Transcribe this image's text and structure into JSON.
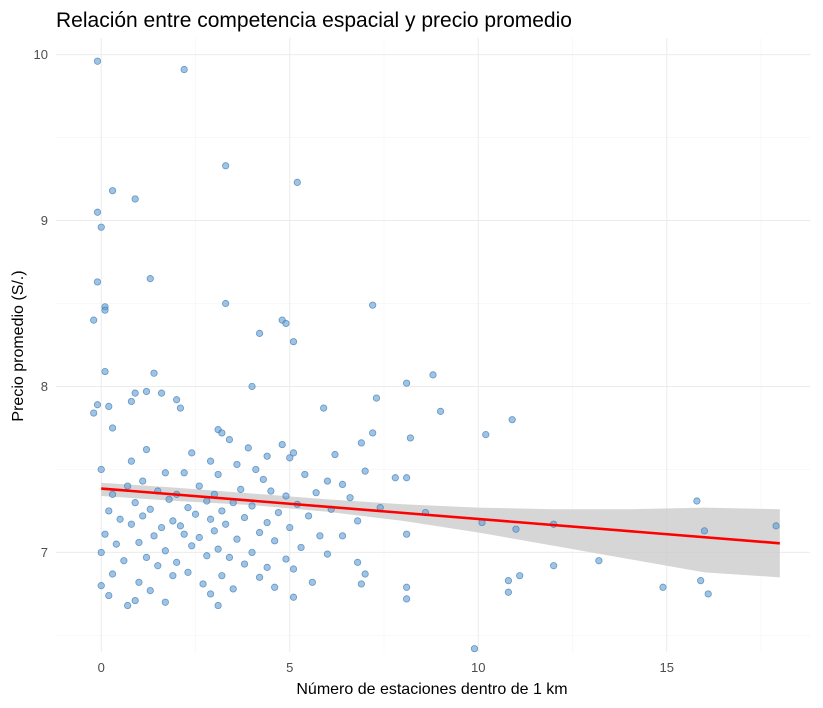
{
  "chart_data": {
    "type": "scatter",
    "title": "Relación entre competencia espacial y precio promedio",
    "xlabel": "Número de estaciones dentro de 1 km",
    "ylabel": "Precio promedio (S/.)",
    "xlim": [
      -1.2,
      18.8
    ],
    "ylim": [
      6.4,
      10.1
    ],
    "x_ticks": [
      {
        "value": 0,
        "label": "0"
      },
      {
        "value": 5,
        "label": "5"
      },
      {
        "value": 10,
        "label": "10"
      },
      {
        "value": 15,
        "label": "15"
      }
    ],
    "y_ticks": [
      {
        "value": 7,
        "label": "7"
      },
      {
        "value": 8,
        "label": "8"
      },
      {
        "value": 9,
        "label": "9"
      },
      {
        "value": 10,
        "label": "10"
      }
    ],
    "grid": true,
    "colors": {
      "point_fill": "#5b9bd5",
      "point_stroke": "#3f78ad",
      "trend": "#ff0000",
      "ribbon": "#cccccc"
    },
    "trend_line": {
      "x": [
        0,
        18
      ],
      "y": [
        7.385,
        7.055
      ]
    },
    "confidence_band": {
      "x": [
        0,
        2,
        4,
        6,
        8,
        10,
        12,
        14,
        16,
        18
      ],
      "lower": [
        7.34,
        7.31,
        7.285,
        7.245,
        7.19,
        7.12,
        7.04,
        6.96,
        6.88,
        6.85
      ],
      "upper": [
        7.42,
        7.39,
        7.355,
        7.32,
        7.29,
        7.27,
        7.26,
        7.26,
        7.27,
        7.26
      ]
    },
    "points": [
      [
        -0.1,
        9.96
      ],
      [
        2.2,
        9.91
      ],
      [
        3.3,
        9.33
      ],
      [
        5.2,
        9.23
      ],
      [
        0.3,
        9.18
      ],
      [
        0.9,
        9.13
      ],
      [
        -0.1,
        9.05
      ],
      [
        0,
        8.96
      ],
      [
        1.3,
        8.65
      ],
      [
        -0.1,
        8.63
      ],
      [
        3.3,
        8.5
      ],
      [
        7.2,
        8.49
      ],
      [
        0.1,
        8.48
      ],
      [
        0.1,
        8.46
      ],
      [
        4.8,
        8.4
      ],
      [
        4.9,
        8.38
      ],
      [
        -0.2,
        8.4
      ],
      [
        4.2,
        8.32
      ],
      [
        5.1,
        8.27
      ],
      [
        0.1,
        8.09
      ],
      [
        1.4,
        8.08
      ],
      [
        8.8,
        8.07
      ],
      [
        8.1,
        8.02
      ],
      [
        4.0,
        8.0
      ],
      [
        0.9,
        7.96
      ],
      [
        1.6,
        7.96
      ],
      [
        1.2,
        7.97
      ],
      [
        7.3,
        7.93
      ],
      [
        2.0,
        7.92
      ],
      [
        0.8,
        7.91
      ],
      [
        -0.1,
        7.89
      ],
      [
        0.2,
        7.88
      ],
      [
        2.1,
        7.87
      ],
      [
        5.9,
        7.87
      ],
      [
        9.0,
        7.85
      ],
      [
        -0.2,
        7.84
      ],
      [
        10.9,
        7.8
      ],
      [
        0.3,
        7.75
      ],
      [
        3.1,
        7.74
      ],
      [
        3.2,
        7.72
      ],
      [
        7.2,
        7.72
      ],
      [
        10.2,
        7.71
      ],
      [
        8.2,
        7.69
      ],
      [
        3.4,
        7.68
      ],
      [
        6.9,
        7.66
      ],
      [
        4.8,
        7.65
      ],
      [
        3.9,
        7.63
      ],
      [
        1.2,
        7.62
      ],
      [
        2.4,
        7.6
      ],
      [
        5.1,
        7.6
      ],
      [
        6.2,
        7.59
      ],
      [
        4.4,
        7.58
      ],
      [
        5.0,
        7.57
      ],
      [
        0.8,
        7.55
      ],
      [
        2.9,
        7.55
      ],
      [
        3.6,
        7.53
      ],
      [
        4.1,
        7.5
      ],
      [
        7.0,
        7.49
      ],
      [
        0.0,
        7.5
      ],
      [
        2.2,
        7.48
      ],
      [
        1.7,
        7.48
      ],
      [
        5.4,
        7.47
      ],
      [
        3.1,
        7.47
      ],
      [
        8.1,
        7.45
      ],
      [
        7.8,
        7.45
      ],
      [
        4.3,
        7.44
      ],
      [
        1.1,
        7.43
      ],
      [
        6.0,
        7.43
      ],
      [
        6.4,
        7.41
      ],
      [
        2.6,
        7.4
      ],
      [
        0.7,
        7.4
      ],
      [
        3.7,
        7.38
      ],
      [
        4.5,
        7.37
      ],
      [
        1.5,
        7.37
      ],
      [
        5.7,
        7.36
      ],
      [
        2.0,
        7.35
      ],
      [
        3.0,
        7.35
      ],
      [
        0.3,
        7.35
      ],
      [
        4.9,
        7.34
      ],
      [
        6.6,
        7.33
      ],
      [
        1.8,
        7.32
      ],
      [
        2.8,
        7.31
      ],
      [
        3.5,
        7.3
      ],
      [
        0.9,
        7.3
      ],
      [
        5.2,
        7.29
      ],
      [
        4.0,
        7.28
      ],
      [
        7.4,
        7.27
      ],
      [
        2.3,
        7.27
      ],
      [
        1.3,
        7.26
      ],
      [
        6.1,
        7.26
      ],
      [
        3.2,
        7.25
      ],
      [
        0.2,
        7.25
      ],
      [
        4.7,
        7.24
      ],
      [
        8.6,
        7.24
      ],
      [
        2.5,
        7.23
      ],
      [
        1.1,
        7.22
      ],
      [
        5.5,
        7.22
      ],
      [
        3.8,
        7.21
      ],
      [
        0.5,
        7.2
      ],
      [
        2.9,
        7.2
      ],
      [
        6.8,
        7.19
      ],
      [
        1.9,
        7.19
      ],
      [
        4.4,
        7.18
      ],
      [
        3.3,
        7.17
      ],
      [
        0.8,
        7.17
      ],
      [
        2.1,
        7.16
      ],
      [
        5.0,
        7.15
      ],
      [
        1.6,
        7.15
      ],
      [
        10.1,
        7.18
      ],
      [
        12.0,
        7.17
      ],
      [
        16.0,
        7.13
      ],
      [
        3.0,
        7.13
      ],
      [
        4.2,
        7.12
      ],
      [
        2.2,
        7.11
      ],
      [
        0.1,
        7.11
      ],
      [
        5.8,
        7.1
      ],
      [
        1.4,
        7.1
      ],
      [
        6.4,
        7.1
      ],
      [
        8.1,
        7.11
      ],
      [
        2.6,
        7.09
      ],
      [
        3.6,
        7.08
      ],
      [
        4.6,
        7.07
      ],
      [
        1.0,
        7.06
      ],
      [
        0.4,
        7.05
      ],
      [
        2.4,
        7.04
      ],
      [
        5.3,
        7.03
      ],
      [
        3.1,
        7.02
      ],
      [
        1.7,
        7.01
      ],
      [
        4.0,
        7.0
      ],
      [
        0.0,
        7.0
      ],
      [
        6.0,
        6.99
      ],
      [
        2.8,
        6.98
      ],
      [
        1.2,
        6.97
      ],
      [
        3.4,
        6.97
      ],
      [
        4.9,
        6.96
      ],
      [
        13.2,
        6.95
      ],
      [
        0.6,
        6.95
      ],
      [
        2.0,
        6.94
      ],
      [
        6.8,
        6.94
      ],
      [
        3.8,
        6.93
      ],
      [
        1.5,
        6.92
      ],
      [
        4.4,
        6.91
      ],
      [
        12.0,
        6.92
      ],
      [
        5.1,
        6.9
      ],
      [
        2.3,
        6.88
      ],
      [
        0.3,
        6.87
      ],
      [
        7.0,
        6.87
      ],
      [
        1.9,
        6.86
      ],
      [
        3.2,
        6.86
      ],
      [
        11.1,
        6.86
      ],
      [
        4.2,
        6.85
      ],
      [
        10.8,
        6.83
      ],
      [
        15.9,
        6.83
      ],
      [
        5.6,
        6.82
      ],
      [
        1.0,
        6.82
      ],
      [
        2.7,
        6.81
      ],
      [
        6.9,
        6.81
      ],
      [
        0.0,
        6.8
      ],
      [
        4.6,
        6.79
      ],
      [
        14.9,
        6.79
      ],
      [
        3.5,
        6.78
      ],
      [
        8.1,
        6.79
      ],
      [
        1.3,
        6.77
      ],
      [
        10.8,
        6.76
      ],
      [
        16.1,
        6.75
      ],
      [
        2.9,
        6.75
      ],
      [
        0.2,
        6.74
      ],
      [
        5.1,
        6.73
      ],
      [
        8.1,
        6.72
      ],
      [
        0.9,
        6.71
      ],
      [
        1.7,
        6.7
      ],
      [
        3.1,
        6.68
      ],
      [
        0.7,
        6.68
      ],
      [
        9.9,
        6.42
      ],
      [
        15.8,
        7.31
      ],
      [
        17.9,
        7.16
      ],
      [
        11.0,
        7.14
      ]
    ]
  }
}
